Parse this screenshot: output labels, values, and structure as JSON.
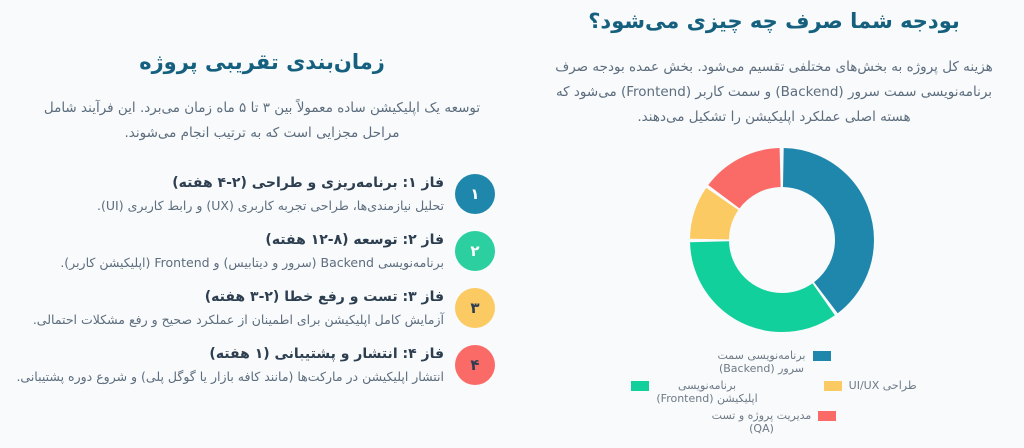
{
  "page": {
    "background": "#f8fafb",
    "heading_color": "#14607e",
    "body_text_color": "#5d6d7e",
    "strong_text_color": "#2c3e50",
    "legend_text_color": "#6e7a87"
  },
  "budget_section": {
    "title": "بودجه شما صرف چه چیزی می‌شود؟",
    "description": "هزینه کل پروژه به بخش‌های مختلفی تقسیم می‌شود. بخش عمده بودجه صرف برنامه‌نویسی سمت سرور (Backend) و سمت کاربر (Frontend) می‌شود که هسته اصلی عملکرد اپلیکیشن را تشکیل می‌دهند."
  },
  "chart_data": {
    "type": "pie",
    "subtype": "doughnut",
    "categories": [
      "برنامه‌نویسی سمت سرور (Backend)",
      "برنامه‌نویسی اپلیکیشن (Frontend)",
      "طراحی UI/UX",
      "مدیریت پروژه و تست (QA)"
    ],
    "values": [
      40,
      35,
      10,
      15
    ],
    "colors": [
      "#1f87ac",
      "#12d09c",
      "#fcca62",
      "#fa6b68"
    ],
    "title": "بودجه شما صرف چه چیزی می‌شود؟",
    "legend_position": "bottom",
    "cutout_percent": 57,
    "border_color": "#ffffff",
    "start_angle_deg": 0,
    "direction": "clockwise"
  },
  "legend": {
    "items": [
      {
        "line1": "برنامه‌نویسی سمت",
        "line2": "سرور (Backend)",
        "color": "#1f87ac"
      },
      {
        "line1": "برنامه‌نویسی",
        "line2": "اپلیکیشن (Frontend)",
        "color": "#12d09c"
      },
      {
        "line1": "طراحی UI/UX",
        "line2": "",
        "color": "#fcca62"
      },
      {
        "line1": "مدیریت پروژه و تست",
        "line2": "(QA)",
        "color": "#fa6b68"
      }
    ]
  },
  "timeline_section": {
    "title": "زمان‌بندی تقریبی پروژه",
    "description": "توسعه یک اپلیکیشن ساده معمولاً بین ۳ تا ۵ ماه زمان می‌برد. این فرآیند شامل مراحل مجزایی است که به ترتیب انجام می‌شوند.",
    "phases": [
      {
        "number": "۱",
        "title": "فاز ۱: برنامه‌ریزی و طراحی (۲-۴ هفته)",
        "description": "تحلیل نیازمندی‌ها، طراحی تجربه کاربری (UX) و رابط کاربری (UI).",
        "badge_color": "#1f87ac",
        "badge_text_color": "#ffffff"
      },
      {
        "number": "۲",
        "title": "فاز ۲: توسعه (۸-۱۲ هفته)",
        "description": "برنامه‌نویسی Backend (سرور و دیتابیس) و Frontend (اپلیکیشن کاربر).",
        "badge_color": "#2bcfa0",
        "badge_text_color": "#ffffff"
      },
      {
        "number": "۳",
        "title": "فاز ۳: تست و رفع خطا (۲-۳ هفته)",
        "description": "آزمایش کامل اپلیکیشن برای اطمینان از عملکرد صحیح و رفع مشکلات احتمالی.",
        "badge_color": "#fcca62",
        "badge_text_color": "#2c3e50"
      },
      {
        "number": "۴",
        "title": "فاز ۴: انتشار و پشتیبانی (۱ هفته)",
        "description": "انتشار اپلیکیشن در مارکت‌ها (مانند کافه بازار یا گوگل پلی) و شروع دوره پشتیبانی.",
        "badge_color": "#fa6b68",
        "badge_text_color": "#2c3e50"
      }
    ]
  }
}
